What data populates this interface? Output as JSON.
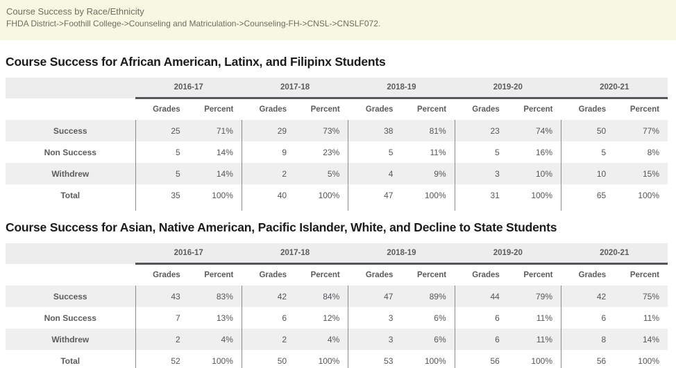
{
  "banner": {
    "title": "Course Success by Race/Ethnicity",
    "breadcrumb": "FHDA District->Foothill College->Counseling and Matriculation->Counseling-FH->CNSL->CNSLF072."
  },
  "years": [
    "2016-17",
    "2017-18",
    "2018-19",
    "2019-20",
    "2020-21"
  ],
  "col_headers": {
    "grades": "Grades",
    "percent": "Percent"
  },
  "colors": {
    "banner_bg": "#f8f7e1",
    "band_gray": "#efefef",
    "header_text": "#5c5c5c",
    "title_text": "#1b1b1b",
    "thick_rule": "#55555a",
    "divider": "#8a8a8a"
  },
  "tables": [
    {
      "title": "Course Success for African American, Latinx, and Filipinx Students",
      "rows": [
        {
          "label": "Success",
          "cells": [
            "25",
            "71%",
            "29",
            "73%",
            "38",
            "81%",
            "23",
            "74%",
            "50",
            "77%"
          ]
        },
        {
          "label": "Non Success",
          "cells": [
            "5",
            "14%",
            "9",
            "23%",
            "5",
            "11%",
            "5",
            "16%",
            "5",
            "8%"
          ]
        },
        {
          "label": "Withdrew",
          "cells": [
            "5",
            "14%",
            "2",
            "5%",
            "4",
            "9%",
            "3",
            "10%",
            "10",
            "15%"
          ]
        },
        {
          "label": "Total",
          "cells": [
            "35",
            "100%",
            "40",
            "100%",
            "47",
            "100%",
            "31",
            "100%",
            "65",
            "100%"
          ]
        }
      ]
    },
    {
      "title": "Course Success for Asian, Native American, Pacific Islander, White, and Decline to State Students",
      "rows": [
        {
          "label": "Success",
          "cells": [
            "43",
            "83%",
            "42",
            "84%",
            "47",
            "89%",
            "44",
            "79%",
            "42",
            "75%"
          ]
        },
        {
          "label": "Non Success",
          "cells": [
            "7",
            "13%",
            "6",
            "12%",
            "3",
            "6%",
            "6",
            "11%",
            "6",
            "11%"
          ]
        },
        {
          "label": "Withdrew",
          "cells": [
            "2",
            "4%",
            "2",
            "4%",
            "3",
            "6%",
            "6",
            "11%",
            "8",
            "14%"
          ]
        },
        {
          "label": "Total",
          "cells": [
            "52",
            "100%",
            "50",
            "100%",
            "53",
            "100%",
            "56",
            "100%",
            "56",
            "100%"
          ]
        }
      ]
    }
  ]
}
